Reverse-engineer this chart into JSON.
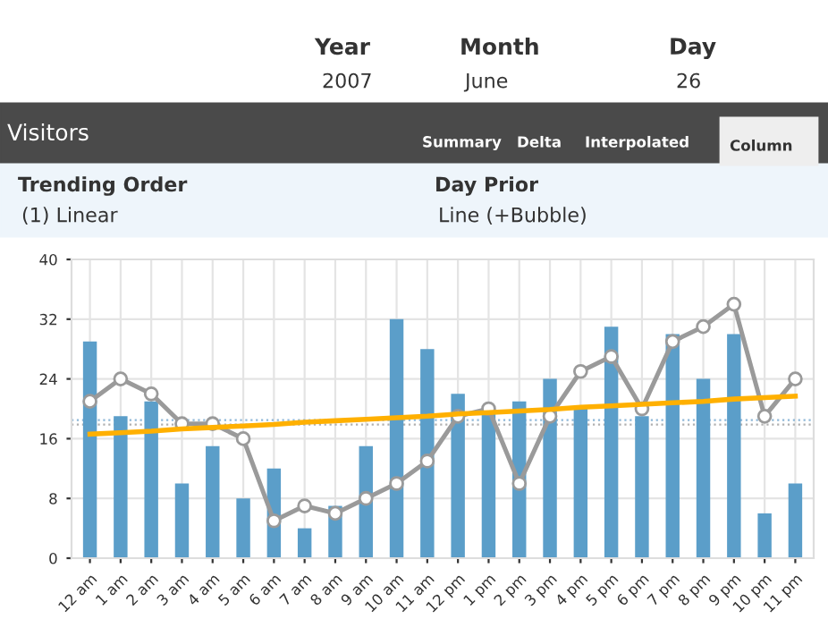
{
  "chart_data": {
    "type": "bar",
    "title": "Visitors",
    "annotations": [
      "Year",
      "2007",
      "Month",
      "June",
      "Day",
      "26",
      "Summary",
      "Delta",
      "Interpolated",
      "Column",
      "Trending Order",
      "(1) Linear",
      "Day Prior",
      "Line (+Bubble)"
    ],
    "categories": [
      "12 am",
      "1 am",
      "2 am",
      "3 am",
      "4 am",
      "5 am",
      "6 am",
      "7 am",
      "8 am",
      "9 am",
      "10 am",
      "11 am",
      "12 pm",
      "1 pm",
      "2 pm",
      "3 pm",
      "4 pm",
      "5 pm",
      "6 pm",
      "7 pm",
      "8 pm",
      "9 pm",
      "10 pm",
      "11 pm"
    ],
    "series": [
      {
        "color": "#5b9ec9",
        "values": [
          29,
          19,
          21,
          10,
          15,
          8,
          12,
          4,
          7,
          15,
          32,
          28,
          22,
          20,
          21,
          24,
          20,
          31,
          19,
          30,
          24,
          30,
          6,
          10
        ]
      },
      {
        "type": "line",
        "color": "#9a9a9a",
        "marker": "circle",
        "values": [
          21,
          24,
          22,
          18,
          18,
          16,
          5,
          7,
          6,
          8,
          10,
          13,
          19,
          20,
          10,
          19,
          25,
          27,
          20,
          29,
          31,
          34,
          19,
          24
        ]
      },
      {
        "type": "line",
        "color": "#ffb000",
        "marker": "none",
        "values": [
          16.6,
          16.8,
          17.0,
          17.3,
          17.5,
          17.7,
          17.9,
          18.2,
          18.4,
          18.6,
          18.8,
          19.0,
          19.3,
          19.5,
          19.7,
          19.9,
          20.2,
          20.4,
          20.6,
          20.8,
          21.0,
          21.3,
          21.5,
          21.7
        ]
      }
    ],
    "ref_lines": [
      {
        "axis": "y",
        "value": 18.5,
        "color": "#8fb8d8",
        "line_style": "dotted"
      },
      {
        "axis": "y",
        "value": 17.9,
        "color": "#b0b0b0",
        "line_style": "dotted"
      }
    ],
    "ylim": [
      0,
      40
    ],
    "yticks": [
      0,
      8,
      16,
      24,
      32,
      40
    ],
    "grid": true,
    "line_style": "solid",
    "legend": false
  }
}
